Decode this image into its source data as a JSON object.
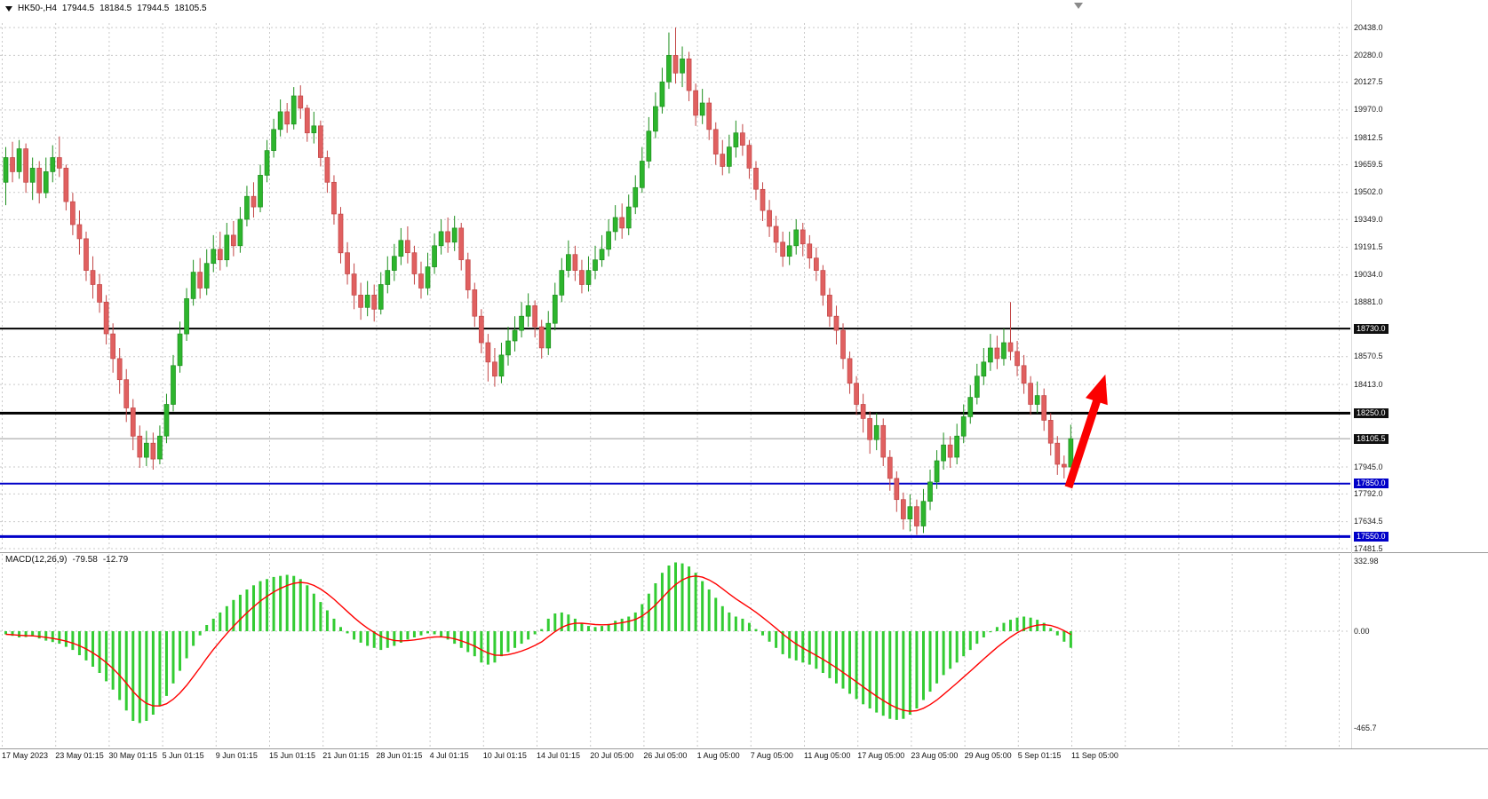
{
  "header": {
    "symbol": "HK50-,H4",
    "open": "17944.5",
    "high": "18184.5",
    "low": "17944.5",
    "close": "18105.5"
  },
  "macd_label": {
    "name": "MACD(12,26,9)",
    "main": "-79.58",
    "signal": "-12.79"
  },
  "chart_data": {
    "type": "candlestick",
    "title": "HK50- H4 with MACD(12,26,9)",
    "price_ylim": [
      17481.5,
      20438.0
    ],
    "current_price": {
      "price": 18105.5,
      "color": "#9a9a9a"
    },
    "horizontal_lines": [
      {
        "price": 18730.0,
        "color": "#000000",
        "width": 2
      },
      {
        "price": 18250.0,
        "color": "#000000",
        "width": 3
      },
      {
        "price": 17850.0,
        "color": "#0000C8",
        "width": 2
      },
      {
        "price": 17550.0,
        "color": "#0000C8",
        "width": 3
      }
    ],
    "price_ticks": [
      {
        "label": "20438.0",
        "price": 20438.0,
        "kind": "grid"
      },
      {
        "label": "20280.0",
        "price": 20280.0,
        "kind": "grid"
      },
      {
        "label": "20127.5",
        "price": 20127.5,
        "kind": "grid"
      },
      {
        "label": "19970.0",
        "price": 19970.0,
        "kind": "grid"
      },
      {
        "label": "19812.5",
        "price": 19812.5,
        "kind": "grid"
      },
      {
        "label": "19659.5",
        "price": 19659.5,
        "kind": "grid"
      },
      {
        "label": "19502.0",
        "price": 19502.0,
        "kind": "grid"
      },
      {
        "label": "19349.0",
        "price": 19349.0,
        "kind": "grid"
      },
      {
        "label": "19191.5",
        "price": 19191.5,
        "kind": "grid"
      },
      {
        "label": "19034.0",
        "price": 19034.0,
        "kind": "grid"
      },
      {
        "label": "18881.0",
        "price": 18881.0,
        "kind": "grid"
      },
      {
        "label": "18730.0",
        "price": 18730.0,
        "kind": "black-tag"
      },
      {
        "label": "18570.5",
        "price": 18570.5,
        "kind": "grid"
      },
      {
        "label": "18413.0",
        "price": 18413.0,
        "kind": "grid"
      },
      {
        "label": "18250.0",
        "price": 18250.0,
        "kind": "black-tag"
      },
      {
        "label": "18105.5",
        "price": 18105.5,
        "kind": "current-tag"
      },
      {
        "label": "17945.0",
        "price": 17945.0,
        "kind": "grid"
      },
      {
        "label": "17850.0",
        "price": 17850.0,
        "kind": "blue-tag"
      },
      {
        "label": "17792.0",
        "price": 17792.0,
        "kind": "grid"
      },
      {
        "label": "17634.5",
        "price": 17634.5,
        "kind": "grid"
      },
      {
        "label": "17550.0",
        "price": 17550.0,
        "kind": "blue-tag"
      },
      {
        "label": "17481.5",
        "price": 17481.5,
        "kind": "grid"
      }
    ],
    "time_labels": [
      "17 May 2023",
      "23 May 01:15",
      "30 May 01:15",
      "5 Jun 01:15",
      "9 Jun 01:15",
      "15 Jun 01:15",
      "21 Jun 01:15",
      "28 Jun 01:15",
      "4 Jul 01:15",
      "10 Jul 01:15",
      "14 Jul 01:15",
      "20 Jul 05:00",
      "26 Jul 05:00",
      "1 Aug 05:00",
      "7 Aug 05:00",
      "11 Aug 05:00",
      "17 Aug 05:00",
      "23 Aug 05:00",
      "29 Aug 05:00",
      "5 Sep 01:15",
      "11 Sep 05:00"
    ],
    "candles": [
      [
        19560,
        19760,
        19430,
        19700
      ],
      [
        19700,
        19790,
        19560,
        19620
      ],
      [
        19620,
        19800,
        19580,
        19750
      ],
      [
        19750,
        19780,
        19500,
        19560
      ],
      [
        19560,
        19700,
        19460,
        19640
      ],
      [
        19640,
        19680,
        19440,
        19500
      ],
      [
        19500,
        19700,
        19470,
        19620
      ],
      [
        19620,
        19770,
        19560,
        19700
      ],
      [
        19700,
        19820,
        19590,
        19640
      ],
      [
        19640,
        19660,
        19400,
        19450
      ],
      [
        19450,
        19500,
        19260,
        19320
      ],
      [
        19320,
        19400,
        19150,
        19240
      ],
      [
        19240,
        19280,
        19000,
        19060
      ],
      [
        19060,
        19140,
        18900,
        18980
      ],
      [
        18980,
        19040,
        18820,
        18880
      ],
      [
        18880,
        18920,
        18640,
        18700
      ],
      [
        18700,
        18760,
        18480,
        18560
      ],
      [
        18560,
        18620,
        18360,
        18440
      ],
      [
        18440,
        18500,
        18200,
        18280
      ],
      [
        18280,
        18330,
        18040,
        18120
      ],
      [
        18120,
        18180,
        17940,
        18000
      ],
      [
        18000,
        18150,
        17950,
        18080
      ],
      [
        18080,
        18140,
        17930,
        17990
      ],
      [
        17990,
        18180,
        17960,
        18120
      ],
      [
        18120,
        18360,
        18080,
        18300
      ],
      [
        18300,
        18580,
        18260,
        18520
      ],
      [
        18520,
        18770,
        18480,
        18700
      ],
      [
        18700,
        18960,
        18660,
        18900
      ],
      [
        18900,
        19120,
        18860,
        19050
      ],
      [
        19050,
        19130,
        18900,
        18960
      ],
      [
        18960,
        19180,
        18920,
        19100
      ],
      [
        19100,
        19260,
        19050,
        19180
      ],
      [
        19180,
        19280,
        19060,
        19120
      ],
      [
        19120,
        19330,
        19080,
        19260
      ],
      [
        19260,
        19340,
        19140,
        19200
      ],
      [
        19200,
        19420,
        19160,
        19350
      ],
      [
        19350,
        19540,
        19310,
        19480
      ],
      [
        19480,
        19560,
        19360,
        19420
      ],
      [
        19420,
        19660,
        19390,
        19600
      ],
      [
        19600,
        19800,
        19560,
        19740
      ],
      [
        19740,
        19920,
        19700,
        19860
      ],
      [
        19860,
        20030,
        19820,
        19960
      ],
      [
        19960,
        20010,
        19840,
        19890
      ],
      [
        19890,
        20100,
        19860,
        20050
      ],
      [
        20050,
        20110,
        19920,
        19980
      ],
      [
        19980,
        20000,
        19790,
        19840
      ],
      [
        19840,
        19960,
        19780,
        19880
      ],
      [
        19880,
        19910,
        19650,
        19700
      ],
      [
        19700,
        19740,
        19500,
        19560
      ],
      [
        19560,
        19600,
        19320,
        19380
      ],
      [
        19380,
        19420,
        19100,
        19160
      ],
      [
        19160,
        19220,
        18980,
        19040
      ],
      [
        19040,
        19100,
        18840,
        18920
      ],
      [
        18920,
        18990,
        18780,
        18850
      ],
      [
        18850,
        19000,
        18800,
        18920
      ],
      [
        18920,
        18980,
        18770,
        18840
      ],
      [
        18840,
        19050,
        18810,
        18980
      ],
      [
        18980,
        19140,
        18930,
        19060
      ],
      [
        19060,
        19210,
        19000,
        19140
      ],
      [
        19140,
        19300,
        19090,
        19230
      ],
      [
        19230,
        19310,
        19100,
        19160
      ],
      [
        19160,
        19200,
        18980,
        19040
      ],
      [
        19040,
        19110,
        18900,
        18960
      ],
      [
        18960,
        19160,
        18920,
        19080
      ],
      [
        19080,
        19270,
        19040,
        19200
      ],
      [
        19200,
        19350,
        19150,
        19280
      ],
      [
        19280,
        19360,
        19160,
        19220
      ],
      [
        19220,
        19370,
        19170,
        19300
      ],
      [
        19300,
        19330,
        19060,
        19120
      ],
      [
        19120,
        19160,
        18900,
        18950
      ],
      [
        18950,
        18990,
        18740,
        18800
      ],
      [
        18800,
        18840,
        18590,
        18650
      ],
      [
        18650,
        18700,
        18430,
        18540
      ],
      [
        18540,
        18620,
        18400,
        18460
      ],
      [
        18460,
        18650,
        18420,
        18580
      ],
      [
        18580,
        18740,
        18520,
        18660
      ],
      [
        18660,
        18800,
        18600,
        18720
      ],
      [
        18720,
        18880,
        18680,
        18800
      ],
      [
        18800,
        18930,
        18740,
        18860
      ],
      [
        18860,
        18890,
        18680,
        18740
      ],
      [
        18740,
        18780,
        18560,
        18620
      ],
      [
        18620,
        18830,
        18580,
        18760
      ],
      [
        18760,
        18990,
        18720,
        18920
      ],
      [
        18920,
        19130,
        18880,
        19060
      ],
      [
        19060,
        19230,
        19020,
        19150
      ],
      [
        19150,
        19200,
        19000,
        19060
      ],
      [
        19060,
        19120,
        18930,
        18980
      ],
      [
        18980,
        19140,
        18940,
        19060
      ],
      [
        19060,
        19200,
        19010,
        19120
      ],
      [
        19120,
        19260,
        19080,
        19180
      ],
      [
        19180,
        19350,
        19140,
        19280
      ],
      [
        19280,
        19430,
        19230,
        19360
      ],
      [
        19360,
        19440,
        19240,
        19300
      ],
      [
        19300,
        19490,
        19260,
        19420
      ],
      [
        19420,
        19600,
        19380,
        19530
      ],
      [
        19530,
        19760,
        19500,
        19680
      ],
      [
        19680,
        19930,
        19640,
        19850
      ],
      [
        19850,
        20070,
        19810,
        19990
      ],
      [
        19990,
        20210,
        19950,
        20130
      ],
      [
        20130,
        20410,
        20090,
        20280
      ],
      [
        20280,
        20438,
        20120,
        20180
      ],
      [
        20180,
        20330,
        20100,
        20260
      ],
      [
        20260,
        20300,
        20020,
        20080
      ],
      [
        20080,
        20120,
        19880,
        19940
      ],
      [
        19940,
        20090,
        19890,
        20010
      ],
      [
        20010,
        20040,
        19800,
        19860
      ],
      [
        19860,
        19900,
        19660,
        19720
      ],
      [
        19720,
        19800,
        19600,
        19650
      ],
      [
        19650,
        19830,
        19610,
        19760
      ],
      [
        19760,
        19910,
        19700,
        19840
      ],
      [
        19840,
        19890,
        19710,
        19770
      ],
      [
        19770,
        19800,
        19580,
        19640
      ],
      [
        19640,
        19680,
        19460,
        19520
      ],
      [
        19520,
        19560,
        19340,
        19400
      ],
      [
        19400,
        19460,
        19250,
        19310
      ],
      [
        19310,
        19370,
        19160,
        19220
      ],
      [
        19220,
        19280,
        19080,
        19140
      ],
      [
        19140,
        19280,
        19090,
        19200
      ],
      [
        19200,
        19350,
        19150,
        19290
      ],
      [
        19290,
        19330,
        19140,
        19210
      ],
      [
        19210,
        19260,
        19070,
        19130
      ],
      [
        19130,
        19190,
        19000,
        19060
      ],
      [
        19060,
        19090,
        18860,
        18920
      ],
      [
        18920,
        18960,
        18740,
        18800
      ],
      [
        18800,
        18860,
        18640,
        18720
      ],
      [
        18720,
        18760,
        18500,
        18560
      ],
      [
        18560,
        18600,
        18360,
        18420
      ],
      [
        18420,
        18460,
        18240,
        18300
      ],
      [
        18300,
        18360,
        18140,
        18220
      ],
      [
        18220,
        18260,
        18020,
        18100
      ],
      [
        18100,
        18250,
        18040,
        18180
      ],
      [
        18180,
        18220,
        17950,
        18000
      ],
      [
        18000,
        18040,
        17810,
        17880
      ],
      [
        17880,
        17920,
        17690,
        17760
      ],
      [
        17760,
        17800,
        17590,
        17650
      ],
      [
        17650,
        17790,
        17580,
        17720
      ],
      [
        17720,
        17760,
        17560,
        17610
      ],
      [
        17610,
        17820,
        17570,
        17750
      ],
      [
        17750,
        17930,
        17700,
        17860
      ],
      [
        17860,
        18040,
        17820,
        17980
      ],
      [
        17980,
        18140,
        17930,
        18070
      ],
      [
        18070,
        18120,
        17940,
        18000
      ],
      [
        18000,
        18190,
        17960,
        18120
      ],
      [
        18120,
        18300,
        18080,
        18230
      ],
      [
        18230,
        18410,
        18190,
        18340
      ],
      [
        18340,
        18530,
        18300,
        18460
      ],
      [
        18460,
        18620,
        18410,
        18540
      ],
      [
        18540,
        18700,
        18490,
        18620
      ],
      [
        18620,
        18690,
        18500,
        18560
      ],
      [
        18560,
        18730,
        18520,
        18650
      ],
      [
        18650,
        18880,
        18550,
        18600
      ],
      [
        18600,
        18660,
        18460,
        18520
      ],
      [
        18520,
        18580,
        18360,
        18420
      ],
      [
        18420,
        18460,
        18240,
        18300
      ],
      [
        18300,
        18430,
        18250,
        18350
      ],
      [
        18350,
        18390,
        18150,
        18210
      ],
      [
        18210,
        18250,
        18010,
        18080
      ],
      [
        18080,
        18120,
        17900,
        17960
      ],
      [
        17960,
        18010,
        17880,
        17944.5
      ],
      [
        17944.5,
        18184.5,
        17944.5,
        18105.5
      ]
    ],
    "macd": {
      "ylim": [
        -465.7,
        332.98
      ],
      "ticks": [
        {
          "label": "332.98",
          "v": 332.98
        },
        {
          "label": "0.00",
          "v": 0
        },
        {
          "label": "-465.7",
          "v": -465.7
        }
      ],
      "histogram": [
        -15,
        -22,
        -30,
        -28,
        -25,
        -35,
        -45,
        -52,
        -60,
        -75,
        -90,
        -115,
        -140,
        -170,
        -200,
        -240,
        -280,
        -330,
        -380,
        -430,
        -440,
        -430,
        -400,
        -360,
        -310,
        -250,
        -190,
        -130,
        -70,
        -20,
        30,
        60,
        90,
        120,
        150,
        175,
        200,
        220,
        240,
        250,
        260,
        265,
        270,
        265,
        250,
        220,
        180,
        140,
        100,
        60,
        20,
        -10,
        -40,
        -55,
        -70,
        -80,
        -90,
        -80,
        -70,
        -55,
        -40,
        -30,
        -20,
        -10,
        -15,
        -25,
        -40,
        -60,
        -80,
        -100,
        -120,
        -150,
        -160,
        -150,
        -120,
        -100,
        -80,
        -60,
        -40,
        -15,
        10,
        60,
        85,
        90,
        80,
        60,
        40,
        25,
        20,
        25,
        35,
        50,
        60,
        70,
        90,
        130,
        180,
        230,
        280,
        315,
        330,
        325,
        310,
        280,
        240,
        200,
        160,
        120,
        90,
        70,
        60,
        40,
        10,
        -20,
        -50,
        -80,
        -110,
        -130,
        -140,
        -150,
        -160,
        -180,
        -200,
        -225,
        -250,
        -275,
        -300,
        -325,
        -350,
        -370,
        -390,
        -405,
        -420,
        -425,
        -420,
        -400,
        -370,
        -330,
        -290,
        -250,
        -210,
        -180,
        -150,
        -120,
        -90,
        -60,
        -30,
        -5,
        20,
        40,
        55,
        65,
        70,
        65,
        55,
        40,
        15,
        -20,
        -50,
        -79.58
      ]
    },
    "arrow": {
      "from_index": 159,
      "from_price": 17830,
      "to_index": 164.5,
      "to_price": 18470,
      "color": "#FB0000"
    },
    "colors": {
      "bull": "#2DB52D",
      "bull_stroke": "#1d8f1d",
      "bear": "#E06060",
      "bear_stroke": "#c24545",
      "macd_bar": "#33CC33",
      "macd_signal": "#FF0000",
      "grid": "#c9c9c9",
      "tag_black_bg": "#101010",
      "tag_blue_bg": "#0000C8"
    }
  }
}
